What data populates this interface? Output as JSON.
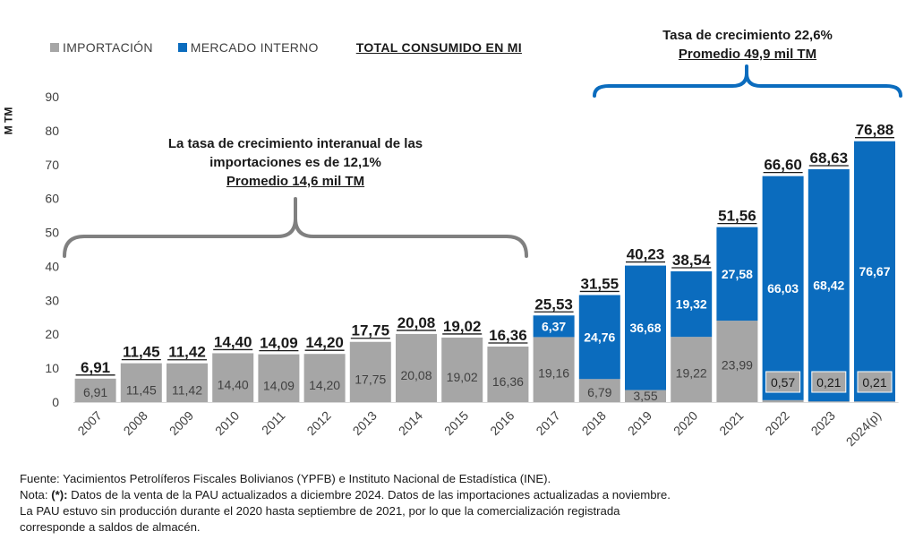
{
  "legend": {
    "import_label": "IMPORTACIÓN",
    "market_label": "MERCADO INTERNO",
    "total_label": "TOTAL CONSUMIDO EN MI"
  },
  "colors": {
    "import": "#A6A6A6",
    "market": "#0B6CBE",
    "bracket_left": "#808080",
    "bracket_right": "#0B6CBE"
  },
  "annotations": {
    "left_line1": "La tasa de crecimiento interanual de las",
    "left_line2": "importaciones es de 12,1%",
    "left_avg": "Promedio 14,6 mil TM",
    "right_line1": "Tasa de crecimiento 22,6%",
    "right_avg": "Promedio 49,9 mil TM"
  },
  "footer": {
    "line1": "Fuente: Yacimientos Petrolíferos Fiscales Bolivianos (YPFB) e Instituto Nacional de Estadística (INE).",
    "line2_prefix": "Nota: ",
    "line2_bold": "(*):",
    "line2_rest": " Datos de la venta de la PAU actualizados a diciembre 2024. Datos de las importaciones actualizadas a noviembre.",
    "line3": "La PAU estuvo sin producción durante el 2020 hasta septiembre de 2021, por lo que la comercialización registrada",
    "line4": "corresponde a saldos de almacén."
  },
  "chart_data": {
    "type": "bar",
    "stacked": true,
    "ylabel": "M TM",
    "ylim": [
      0,
      90
    ],
    "yticks": [
      0,
      10,
      20,
      30,
      40,
      50,
      60,
      70,
      80,
      90
    ],
    "categories": [
      "2007",
      "2008",
      "2009",
      "2010",
      "2011",
      "2012",
      "2013",
      "2014",
      "2015",
      "2016",
      "2017",
      "2018",
      "2019",
      "2020",
      "2021",
      "2022",
      "2023",
      "2024(p)"
    ],
    "series": [
      {
        "name": "IMPORTACIÓN",
        "values": [
          6.91,
          11.45,
          11.42,
          14.4,
          14.09,
          14.2,
          17.75,
          20.08,
          19.02,
          16.36,
          19.16,
          6.79,
          3.55,
          19.22,
          23.99,
          0.57,
          0.21,
          0.21
        ],
        "labels": [
          "6,91",
          "11,45",
          "11,42",
          "14,40",
          "14,09",
          "14,20",
          "17,75",
          "20,08",
          "19,02",
          "16,36",
          "19,16",
          "6,79",
          "3,55",
          "19,22",
          "23,99",
          "0,57",
          "0,21",
          "0,21"
        ]
      },
      {
        "name": "MERCADO INTERNO",
        "values": [
          0,
          0,
          0,
          0,
          0,
          0,
          0,
          0,
          0,
          0,
          6.37,
          24.76,
          36.68,
          19.32,
          27.58,
          66.03,
          68.42,
          76.67
        ],
        "labels": [
          "",
          "",
          "",
          "",
          "",
          "",
          "",
          "",
          "",
          "",
          "6,37",
          "24,76",
          "36,68",
          "19,32",
          "27,58",
          "66,03",
          "68,42",
          "76,67"
        ]
      }
    ],
    "totals": [
      6.91,
      11.45,
      11.42,
      14.4,
      14.09,
      14.2,
      17.75,
      20.08,
      19.02,
      16.36,
      25.53,
      31.55,
      40.23,
      38.54,
      51.56,
      66.6,
      68.63,
      76.88
    ],
    "total_labels": [
      "6,91",
      "11,45",
      "11,42",
      "14,40",
      "14,09",
      "14,20",
      "17,75",
      "20,08",
      "19,02",
      "16,36",
      "25,53",
      "31,55",
      "40,23",
      "38,54",
      "51,56",
      "66,60",
      "68,63",
      "76,88"
    ],
    "legend_position": "top-left",
    "grid": false
  }
}
